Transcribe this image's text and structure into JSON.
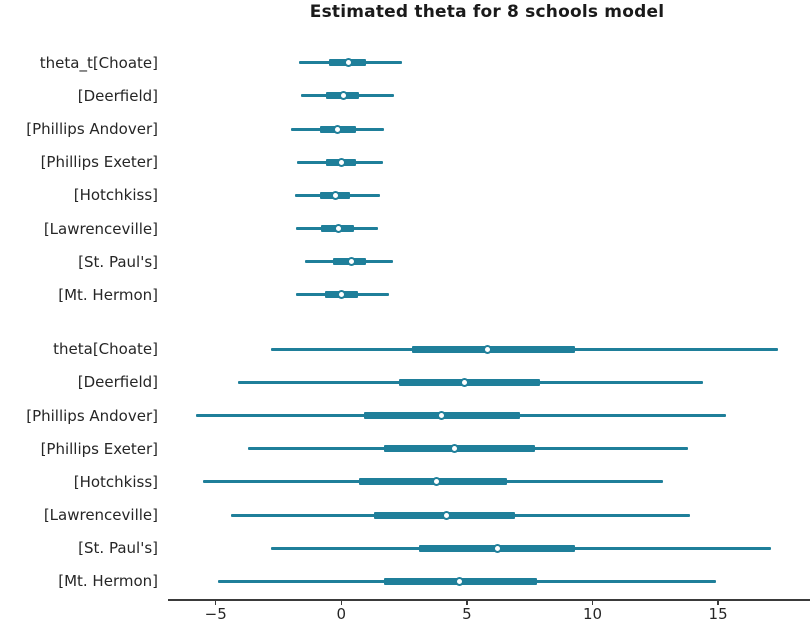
{
  "chart_data": {
    "type": "forest",
    "title": "Estimated theta for 8 schools model",
    "xlim": [
      -6.9,
      18.5
    ],
    "xticks": [
      -5,
      0,
      5,
      10,
      15
    ],
    "xtick_labels": [
      "−5",
      "0",
      "5",
      "10",
      "15"
    ],
    "colors": {
      "interval": "#1f7f9a",
      "marker_fill": "#ffffff",
      "axis": "#3a3a3a",
      "tick_text": "#262626",
      "title_text": "#1a1a1a"
    },
    "groups": [
      {
        "name": "theta_t",
        "rows": [
          {
            "label": "theta_t[Choate]",
            "lo": -1.7,
            "q1": -0.5,
            "median": 0.3,
            "q3": 1.0,
            "hi": 2.4
          },
          {
            "label": "[Deerfield]",
            "lo": -1.6,
            "q1": -0.6,
            "median": 0.1,
            "q3": 0.7,
            "hi": 2.1
          },
          {
            "label": "[Phillips Andover]",
            "lo": -2.0,
            "q1": -0.85,
            "median": -0.15,
            "q3": 0.6,
            "hi": 1.7
          },
          {
            "label": "[Phillips Exeter]",
            "lo": -1.75,
            "q1": -0.6,
            "median": 0.0,
            "q3": 0.6,
            "hi": 1.65
          },
          {
            "label": "[Hotchkiss]",
            "lo": -1.85,
            "q1": -0.85,
            "median": -0.25,
            "q3": 0.35,
            "hi": 1.55
          },
          {
            "label": "[Lawrenceville]",
            "lo": -1.8,
            "q1": -0.8,
            "median": -0.1,
            "q3": 0.5,
            "hi": 1.45
          },
          {
            "label": "[St. Paul's]",
            "lo": -1.45,
            "q1": -0.35,
            "median": 0.4,
            "q3": 1.0,
            "hi": 2.05
          },
          {
            "label": "[Mt. Hermon]",
            "lo": -1.8,
            "q1": -0.65,
            "median": 0.0,
            "q3": 0.65,
            "hi": 1.9
          }
        ]
      },
      {
        "name": "theta",
        "rows": [
          {
            "label": "theta[Choate]",
            "lo": -2.8,
            "q1": 2.8,
            "median": 5.8,
            "q3": 9.3,
            "hi": 17.4
          },
          {
            "label": "[Deerfield]",
            "lo": -4.1,
            "q1": 2.3,
            "median": 4.9,
            "q3": 7.9,
            "hi": 14.4
          },
          {
            "label": "[Phillips Andover]",
            "lo": -5.8,
            "q1": 0.9,
            "median": 4.0,
            "q3": 7.1,
            "hi": 15.3
          },
          {
            "label": "[Phillips Exeter]",
            "lo": -3.7,
            "q1": 1.7,
            "median": 4.5,
            "q3": 7.7,
            "hi": 13.8
          },
          {
            "label": "[Hotchkiss]",
            "lo": -5.5,
            "q1": 0.7,
            "median": 3.8,
            "q3": 6.6,
            "hi": 12.8
          },
          {
            "label": "[Lawrenceville]",
            "lo": -4.4,
            "q1": 1.3,
            "median": 4.2,
            "q3": 6.9,
            "hi": 13.9
          },
          {
            "label": "[St. Paul's]",
            "lo": -2.8,
            "q1": 3.1,
            "median": 6.2,
            "q3": 9.3,
            "hi": 17.1
          },
          {
            "label": "[Mt. Hermon]",
            "lo": -4.9,
            "q1": 1.7,
            "median": 4.7,
            "q3": 7.8,
            "hi": 14.9
          }
        ]
      }
    ]
  }
}
